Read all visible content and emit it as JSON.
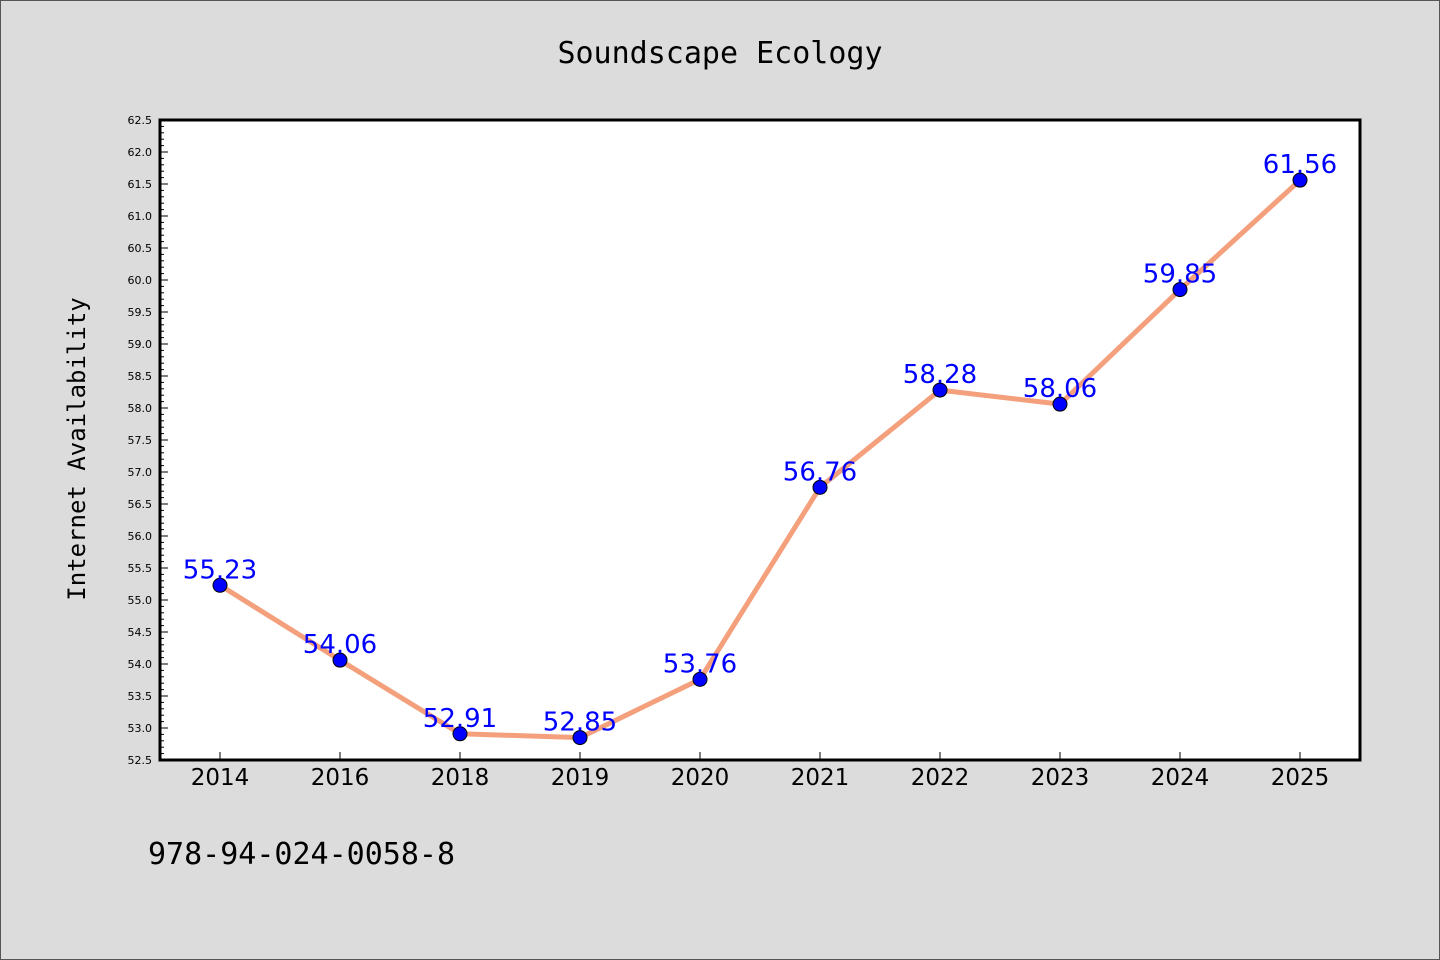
{
  "chart_data": {
    "type": "line",
    "title": "Soundscape Ecology",
    "xlabel": "",
    "ylabel": "Internet Availability",
    "categories": [
      "2014",
      "2016",
      "2018",
      "2019",
      "2020",
      "2021",
      "2022",
      "2023",
      "2024",
      "2025"
    ],
    "series": [
      {
        "values": [
          55.23,
          54.06,
          52.91,
          52.85,
          53.76,
          56.76,
          58.28,
          58.06,
          59.85,
          61.56
        ],
        "labels": [
          "55.23",
          "54.06",
          "52.91",
          "52.85",
          "53.76",
          "56.76",
          "58.28",
          "58.06",
          "59.85",
          "61.56"
        ],
        "line_color": "#f4a07c",
        "marker_color": "#0000ff"
      }
    ],
    "ylim": [
      52.5,
      62.5
    ],
    "yticks": [
      "52.5",
      "53.0",
      "53.5",
      "54.0",
      "54.5",
      "55.0",
      "55.5",
      "56.0",
      "56.5",
      "57.0",
      "57.5",
      "58.0",
      "58.5",
      "59.0",
      "59.5",
      "60.0",
      "60.5",
      "61.0",
      "61.5",
      "62.0",
      "62.5"
    ],
    "grid": false,
    "legend": "none",
    "data_label_color": "#0000ff",
    "plot_background": "#ffffff",
    "figure_background": "#dcdcdc"
  },
  "footnote": "978-94-024-0058-8"
}
